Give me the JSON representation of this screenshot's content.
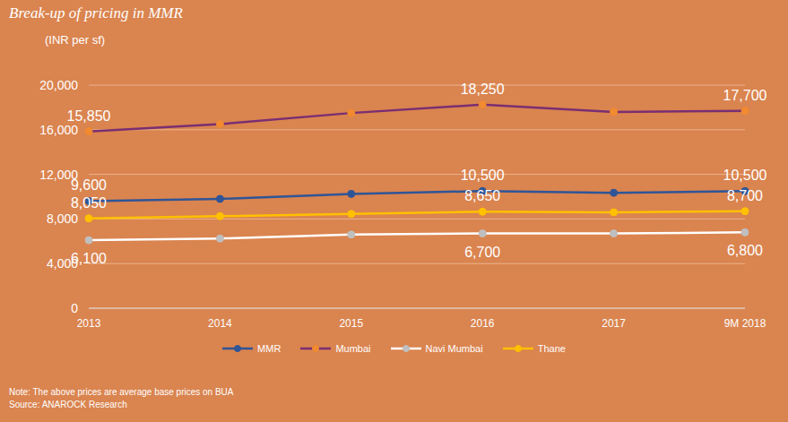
{
  "chart_data": {
    "type": "line",
    "title": "Break-up of pricing in MMR",
    "y_label": "(INR per sf)",
    "note": "Note: The above prices are average base prices on BUA",
    "source": "Source: ANAROCK Research",
    "categories": [
      "2013",
      "2014",
      "2015",
      "2016",
      "2017",
      "9M 2018"
    ],
    "series": [
      {
        "name": "MMR",
        "color": "#2F5597",
        "marker": "circle",
        "values": [
          9600,
          9800,
          10250,
          10500,
          10350,
          10500
        ],
        "value_labels": [
          "9,600",
          null,
          null,
          "10,500",
          null,
          "10,500"
        ]
      },
      {
        "name": "Mumbai",
        "color": "#7A2E72",
        "marker": "circle",
        "values": [
          15850,
          16500,
          17500,
          18250,
          17600,
          17700
        ],
        "value_labels": [
          "15,850",
          null,
          null,
          "18,250",
          null,
          "17,700"
        ]
      },
      {
        "name": "Navi Mumbai",
        "color": "#FFFFFF",
        "marker": "circle",
        "values": [
          6100,
          6250,
          6600,
          6700,
          6700,
          6800
        ],
        "value_labels": [
          "6,100",
          null,
          null,
          "6,700",
          null,
          "6,800"
        ]
      },
      {
        "name": "Thane",
        "color": "#FFC000",
        "marker": "circle",
        "values": [
          8050,
          8250,
          8450,
          8650,
          8600,
          8700
        ],
        "value_labels": [
          "8,050",
          null,
          null,
          "8,650",
          null,
          "8,700"
        ]
      }
    ],
    "ylim": [
      0,
      20000
    ],
    "yticks": [
      0,
      {
        "value": 4000,
        "label": "4,000"
      },
      {
        "value": 8000,
        "label": "8,000"
      },
      {
        "value": 12000,
        "label": "12,000"
      },
      {
        "value": 16000,
        "label": "16,000"
      },
      {
        "value": 20000,
        "label": "20,000"
      }
    ],
    "grid": true,
    "data_labels": true,
    "legend": "bottom"
  }
}
